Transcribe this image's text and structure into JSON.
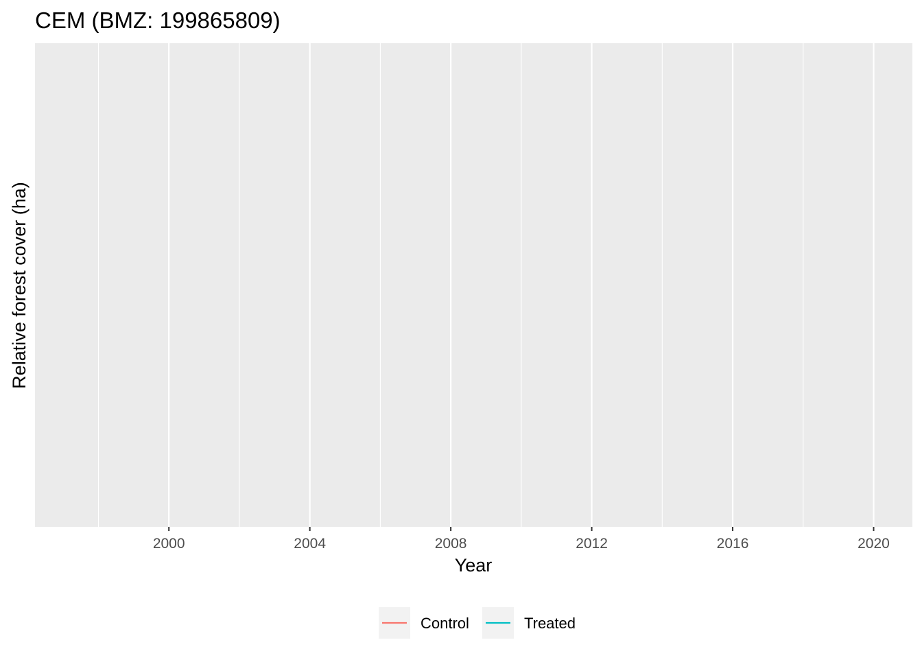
{
  "chart_data": {
    "type": "line",
    "title": "CEM (BMZ: 199865809)",
    "xlabel": "Year",
    "ylabel": "Relative forest cover (ha)",
    "xlim": [
      1996.2,
      2021.1
    ],
    "major_ticks": [
      2000,
      2004,
      2008,
      2012,
      2016,
      2020
    ],
    "tick_labels": [
      "2000",
      "2004",
      "2008",
      "2012",
      "2016",
      "2020"
    ],
    "minor_ticks": [
      1998,
      2002,
      2006,
      2010,
      2014,
      2018
    ],
    "grid": true,
    "legend_position": "bottom",
    "series": [
      {
        "name": "Control",
        "color": "#F8766D",
        "values": []
      },
      {
        "name": "Treated",
        "color": "#00BFC4",
        "values": []
      }
    ]
  }
}
